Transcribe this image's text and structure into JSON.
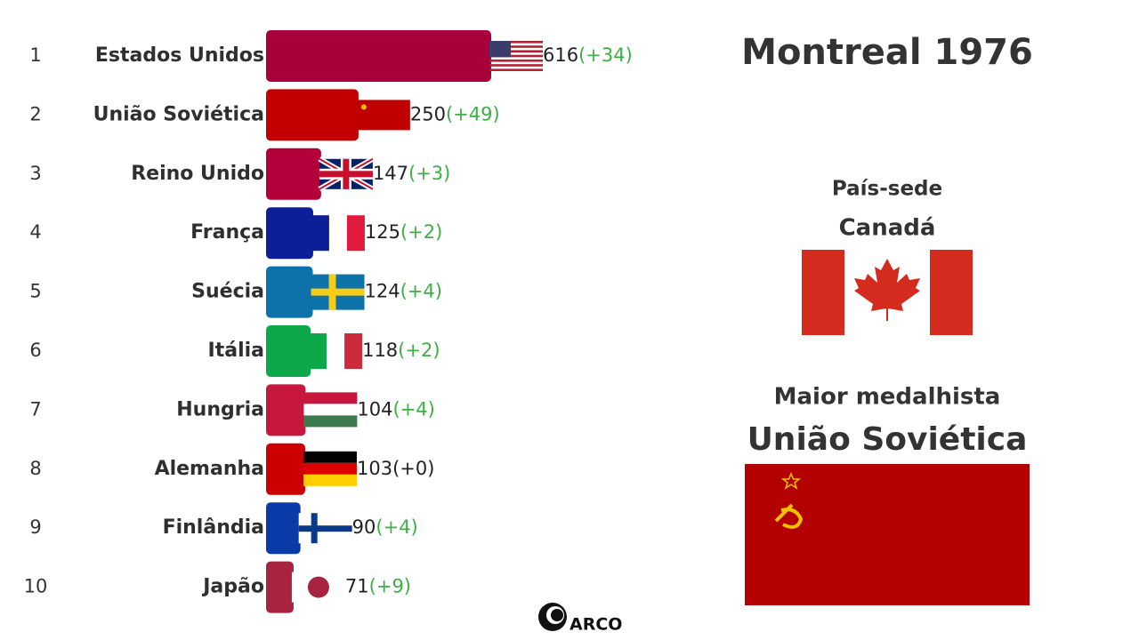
{
  "chart_data": {
    "type": "bar",
    "orientation": "horizontal",
    "title": "Montreal 1976",
    "ranks": [
      1,
      2,
      3,
      4,
      5,
      6,
      7,
      8,
      9,
      10
    ],
    "categories": [
      "Estados Unidos",
      "União Soviética",
      "Reino Unido",
      "França",
      "Suécia",
      "Itália",
      "Hungria",
      "Alemanha",
      "Finlândia",
      "Japão"
    ],
    "values": [
      616,
      250,
      147,
      125,
      124,
      118,
      104,
      103,
      90,
      71
    ],
    "changes": [
      34,
      49,
      3,
      2,
      4,
      2,
      4,
      0,
      4,
      9
    ],
    "change_labels": [
      "(+34)",
      "(+49)",
      "(+3)",
      "(+2)",
      "(+4)",
      "(+2)",
      "(+4)",
      "(+0)",
      "(+4)",
      "(+9)"
    ],
    "colors": [
      "#a8003a",
      "#c20000",
      "#b4003a",
      "#0b1f98",
      "#0d72a8",
      "#0ca84a",
      "#c8173c",
      "#cc0000",
      "#0a3aa8",
      "#a8233f"
    ],
    "host_label": "País-sede",
    "host": "Canadá",
    "top_label": "Maior medalhista",
    "top": "União Soviética",
    "logo": "ARCO"
  }
}
